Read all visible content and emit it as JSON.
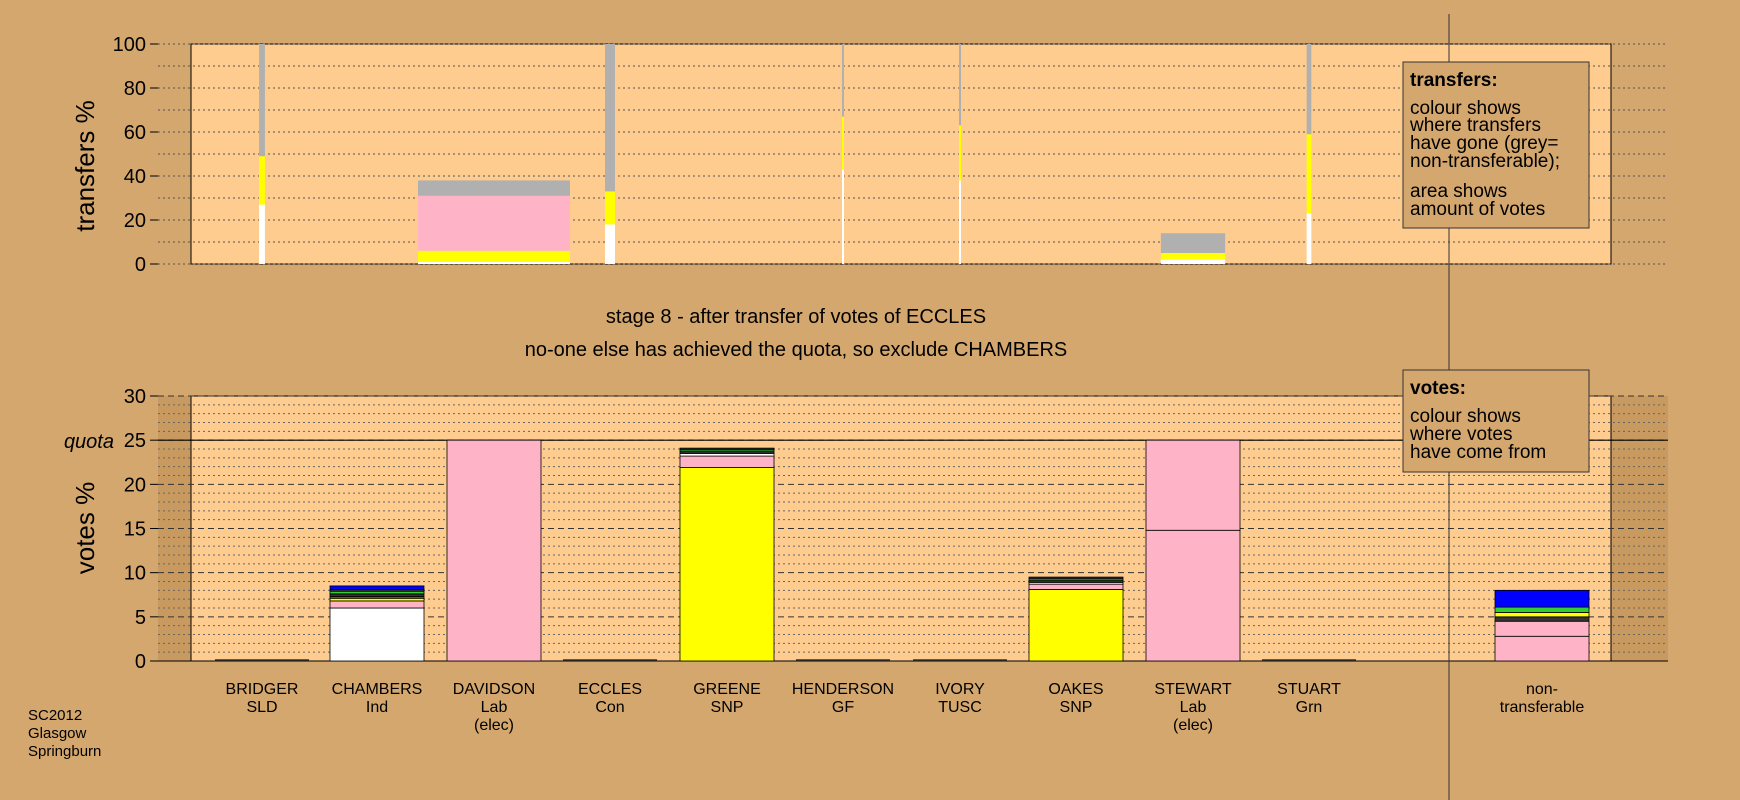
{
  "header": {
    "stage_title": "stage 8 - after transfer of votes of ECCLES",
    "stage_subtitle": "no-one else has achieved the quota, so exclude CHAMBERS"
  },
  "footer": [
    "SC2012",
    "Glasgow",
    "Springburn"
  ],
  "legends": {
    "transfers": {
      "title": "transfers:",
      "lines": [
        "colour shows",
        "where transfers",
        "have gone (grey=",
        "non-transferable);"
      ],
      "lines2": [
        "area shows",
        "amount of votes"
      ]
    },
    "votes": {
      "title": "votes:",
      "lines": [
        "colour shows",
        "where votes",
        "have come from"
      ]
    }
  },
  "colors": {
    "background": "#d4a76e",
    "plot_bg": "#ffcc90",
    "white": "#ffffff",
    "yellow": "#ffff00",
    "pink": "#ffb3c6",
    "grey": "#b0b0b0",
    "blue": "#0000ff",
    "green": "#33cc33",
    "dark": "#333333",
    "red": "#cc3333"
  },
  "chart_data": [
    {
      "type": "bar",
      "ylabel": "transfers %",
      "ylim": [
        0,
        100
      ],
      "yticks": [
        0,
        20,
        40,
        60,
        80,
        100
      ],
      "categories": [
        "BRIDGER",
        "CHAMBERS",
        "DAVIDSON",
        "ECCLES",
        "GREENE",
        "HENDERSON",
        "IVORY",
        "OAKES",
        "STEWART",
        "STUART"
      ],
      "bars": [
        {
          "candidate": "BRIDGER",
          "width_votes": 0.05,
          "segments": [
            {
              "color": "white",
              "value": 27
            },
            {
              "color": "yellow",
              "value": 22
            },
            {
              "color": "grey",
              "value": 51
            }
          ]
        },
        {
          "candidate": "DAVIDSON",
          "width_votes": 1.3,
          "segments": [
            {
              "color": "white",
              "value": 1
            },
            {
              "color": "yellow",
              "value": 5
            },
            {
              "color": "pink",
              "value": 25
            },
            {
              "color": "grey",
              "value": 7
            }
          ]
        },
        {
          "candidate": "ECCLES",
          "width_votes": 0.08,
          "segments": [
            {
              "color": "white",
              "value": 18
            },
            {
              "color": "yellow",
              "value": 15
            },
            {
              "color": "grey",
              "value": 67
            }
          ]
        },
        {
          "candidate": "HENDERSON",
          "width_votes": 0.01,
          "segments": [
            {
              "color": "white",
              "value": 43
            },
            {
              "color": "yellow",
              "value": 24
            },
            {
              "color": "grey",
              "value": 33
            }
          ]
        },
        {
          "candidate": "IVORY",
          "width_votes": 0.01,
          "segments": [
            {
              "color": "white",
              "value": 38
            },
            {
              "color": "yellow",
              "value": 25
            },
            {
              "color": "grey",
              "value": 37
            }
          ]
        },
        {
          "candidate": "STEWART",
          "width_votes": 0.55,
          "segments": [
            {
              "color": "white",
              "value": 2
            },
            {
              "color": "yellow",
              "value": 3
            },
            {
              "color": "grey",
              "value": 9
            }
          ]
        },
        {
          "candidate": "STUART",
          "width_votes": 0.04,
          "segments": [
            {
              "color": "white",
              "value": 23
            },
            {
              "color": "yellow",
              "value": 36
            },
            {
              "color": "grey",
              "value": 41
            }
          ]
        }
      ]
    },
    {
      "type": "bar",
      "ylabel": "votes %",
      "ylim": [
        0,
        30
      ],
      "yticks": [
        0,
        5,
        10,
        15,
        20,
        25,
        30
      ],
      "quota": {
        "label": "quota",
        "value": 25
      },
      "categories": [
        "BRIDGER",
        "CHAMBERS",
        "DAVIDSON",
        "ECCLES",
        "GREENE",
        "HENDERSON",
        "IVORY",
        "OAKES",
        "STEWART",
        "STUART",
        "non-transferable"
      ],
      "candidates": [
        {
          "name": "BRIDGER",
          "party": "SLD",
          "status": "",
          "segments": []
        },
        {
          "name": "CHAMBERS",
          "party": "Ind",
          "status": "",
          "segments": [
            {
              "color": "white",
              "value": 6.0
            },
            {
              "color": "pink",
              "value": 0.8
            },
            {
              "color": "yellow",
              "value": 0.3
            },
            {
              "color": "red",
              "value": 0.2
            },
            {
              "color": "dark",
              "value": 0.3
            },
            {
              "color": "green",
              "value": 0.3
            },
            {
              "color": "dark",
              "value": 0.2
            },
            {
              "color": "blue",
              "value": 0.4
            }
          ]
        },
        {
          "name": "DAVIDSON",
          "party": "Lab",
          "status": "(elec)",
          "segments": [
            {
              "color": "pink",
              "value": 25.0
            }
          ]
        },
        {
          "name": "ECCLES",
          "party": "Con",
          "status": "",
          "segments": []
        },
        {
          "name": "GREENE",
          "party": "SNP",
          "status": "",
          "segments": [
            {
              "color": "yellow",
              "value": 21.9
            },
            {
              "color": "pink",
              "value": 1.3
            },
            {
              "color": "white",
              "value": 0.3
            },
            {
              "color": "dark",
              "value": 0.2
            },
            {
              "color": "green",
              "value": 0.2
            },
            {
              "color": "dark",
              "value": 0.2
            }
          ]
        },
        {
          "name": "HENDERSON",
          "party": "GF",
          "status": "",
          "segments": []
        },
        {
          "name": "IVORY",
          "party": "TUSC",
          "status": "",
          "segments": []
        },
        {
          "name": "OAKES",
          "party": "SNP",
          "status": "",
          "segments": [
            {
              "color": "yellow",
              "value": 8.1
            },
            {
              "color": "pink",
              "value": 0.6
            },
            {
              "color": "white",
              "value": 0.2
            },
            {
              "color": "dark",
              "value": 0.2
            },
            {
              "color": "green",
              "value": 0.2
            },
            {
              "color": "dark",
              "value": 0.2
            }
          ]
        },
        {
          "name": "STEWART",
          "party": "Lab",
          "status": "(elec)",
          "segments": [
            {
              "color": "pink",
              "value": 14.8
            },
            {
              "color": "pink",
              "value": 10.2
            }
          ]
        },
        {
          "name": "STUART",
          "party": "Grn",
          "status": "",
          "segments": []
        },
        {
          "name": "non-",
          "party": "transferable",
          "status": "",
          "segments": [
            {
              "color": "pink",
              "value": 2.8
            },
            {
              "color": "pink",
              "value": 1.7
            },
            {
              "color": "dark",
              "value": 0.5
            },
            {
              "color": "yellow",
              "value": 0.5
            },
            {
              "color": "green",
              "value": 0.6
            },
            {
              "color": "blue",
              "value": 1.9
            }
          ]
        }
      ]
    }
  ]
}
